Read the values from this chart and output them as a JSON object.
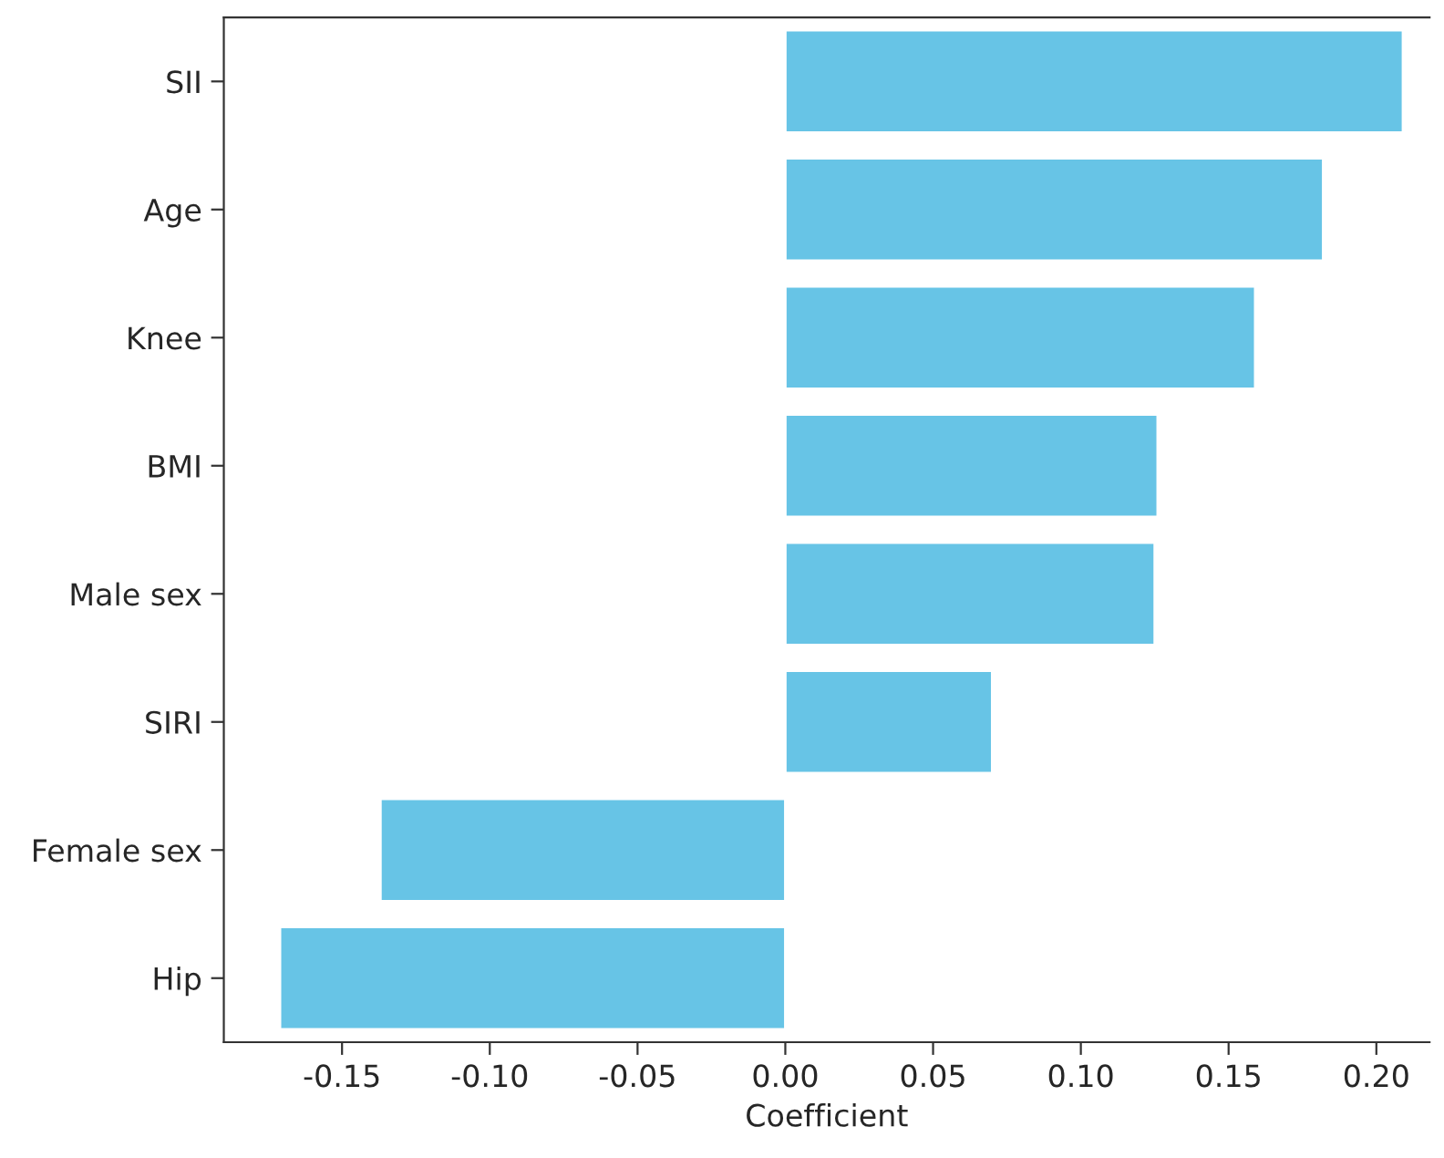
{
  "chart_data": {
    "type": "bar",
    "orientation": "horizontal",
    "xlabel": "Coefficient",
    "categories": [
      "SII",
      "Age",
      "Knee",
      "BMI",
      "Male sex",
      "SIRI",
      "Female sex",
      "Hip"
    ],
    "values": [
      0.209,
      0.182,
      0.159,
      0.126,
      0.125,
      0.07,
      -0.137,
      -0.171
    ],
    "color": "#67c4e6",
    "xlim": [
      -0.19,
      0.218
    ],
    "xticks": [
      {
        "value": -0.15,
        "label": "-0.15"
      },
      {
        "value": -0.1,
        "label": "-0.10"
      },
      {
        "value": -0.05,
        "label": "-0.05"
      },
      {
        "value": 0,
        "label": "0.00"
      },
      {
        "value": 0.05,
        "label": "0.05"
      },
      {
        "value": 0.1,
        "label": "0.10"
      },
      {
        "value": 0.15,
        "label": "0.15"
      },
      {
        "value": 0.2,
        "label": "0.20"
      }
    ],
    "grid": false,
    "legend": false
  }
}
